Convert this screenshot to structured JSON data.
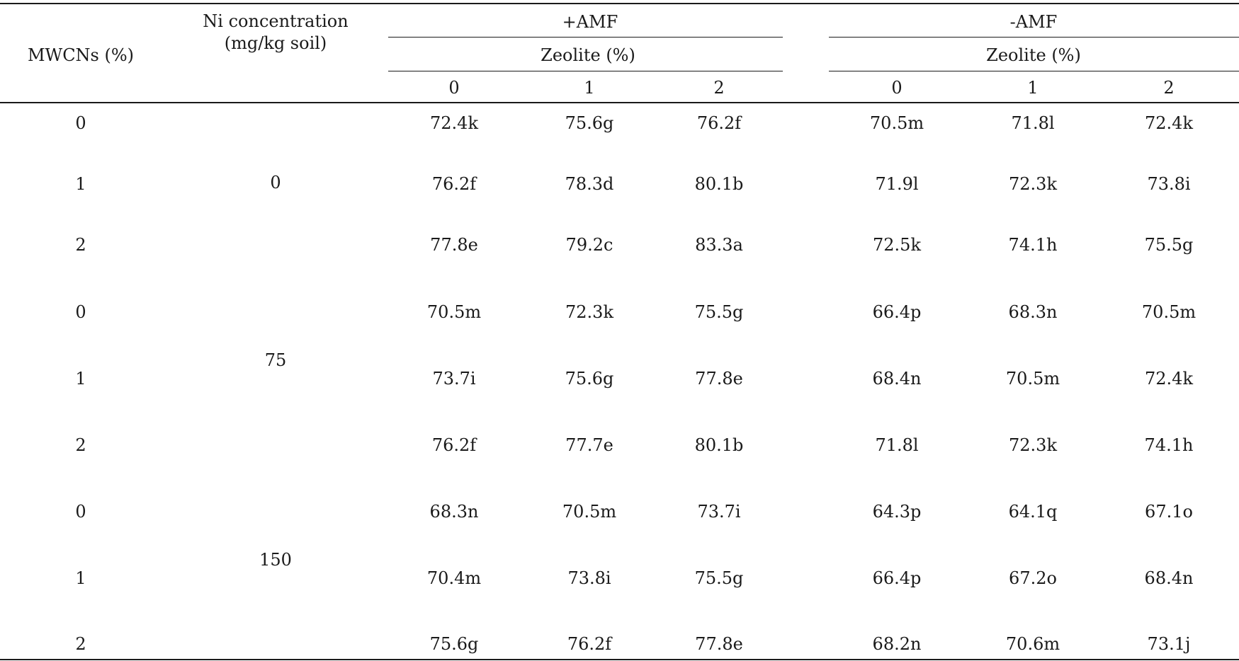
{
  "table": {
    "header": {
      "mwcns": "MWCNs (%)",
      "ni_line1": "Ni concentration",
      "ni_line2": "(mg/kg soil)",
      "plus_amf": "+AMF",
      "minus_amf": "-AMF",
      "zeolite_plus": "Zeolite (%)",
      "zeolite_minus": "Zeolite (%)",
      "zeolite_levels": [
        "0",
        "1",
        "2",
        "0",
        "1",
        "2"
      ]
    },
    "ni_groups": [
      "0",
      "75",
      "150"
    ],
    "rows": [
      {
        "mwcns": "0",
        "values": [
          "72.4k",
          "75.6g",
          "76.2f",
          "70.5m",
          "71.8l",
          "72.4k"
        ]
      },
      {
        "mwcns": "1",
        "values": [
          "76.2f",
          "78.3d",
          "80.1b",
          "71.9l",
          "72.3k",
          "73.8i"
        ]
      },
      {
        "mwcns": "2",
        "values": [
          "77.8e",
          "79.2c",
          "83.3a",
          "72.5k",
          "74.1h",
          "75.5g"
        ]
      },
      {
        "mwcns": "0",
        "values": [
          "70.5m",
          "72.3k",
          "75.5g",
          "66.4p",
          "68.3n",
          "70.5m"
        ]
      },
      {
        "mwcns": "1",
        "values": [
          "73.7i",
          "75.6g",
          "77.8e",
          "68.4n",
          "70.5m",
          "72.4k"
        ]
      },
      {
        "mwcns": "2",
        "values": [
          "76.2f",
          "77.7e",
          "80.1b",
          "71.8l",
          "72.3k",
          "74.1h"
        ]
      },
      {
        "mwcns": "0",
        "values": [
          "68.3n",
          "70.5m",
          "73.7i",
          "64.3p",
          "64.1q",
          "67.1o"
        ]
      },
      {
        "mwcns": "1",
        "values": [
          "70.4m",
          "73.8i",
          "75.5g",
          "66.4p",
          "67.2o",
          "68.4n"
        ]
      },
      {
        "mwcns": "2",
        "values": [
          "75.6g",
          "76.2f",
          "77.8e",
          "68.2n",
          "70.6m",
          "73.1j"
        ]
      }
    ]
  }
}
